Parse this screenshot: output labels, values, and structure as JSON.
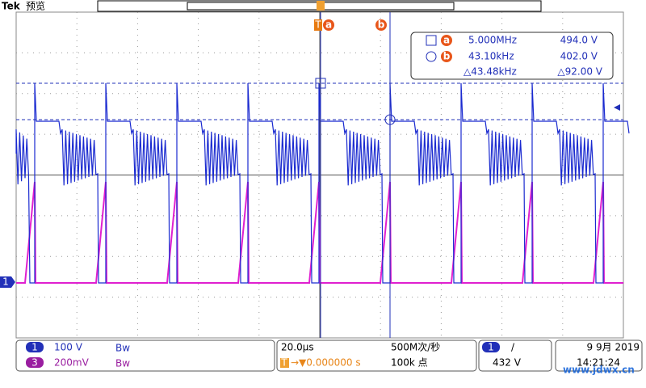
{
  "header": {
    "brand": "Tek",
    "mode": "预览"
  },
  "cursors": {
    "a": "a",
    "b": "b",
    "trigger": "T"
  },
  "readout": {
    "rows": [
      {
        "marker": "a",
        "freq": "5.000MHz",
        "volt": "494.0 V"
      },
      {
        "marker": "b",
        "freq": "43.10kHz",
        "volt": "402.0 V"
      },
      {
        "freq": "△43.48kHz",
        "volt": "△92.00 V"
      }
    ]
  },
  "channel_marker": "1",
  "status": {
    "channels": [
      {
        "id": "1",
        "scale": "100 V",
        "bw": "Bw"
      },
      {
        "id": "3",
        "scale": "200mV",
        "bw": "Bw"
      }
    ],
    "timebase": "20.0µs",
    "trigger_pos": "→▼0.000000 s",
    "trigger_icon": "T",
    "sample_rate": "500M次/秒",
    "record_length": "100k 点",
    "trigger": {
      "source": "1",
      "slope": "/",
      "level": "432 V"
    },
    "date": "9 9月 2019",
    "time": "14:21:24"
  },
  "watermark": "www.jdwx.cn"
}
